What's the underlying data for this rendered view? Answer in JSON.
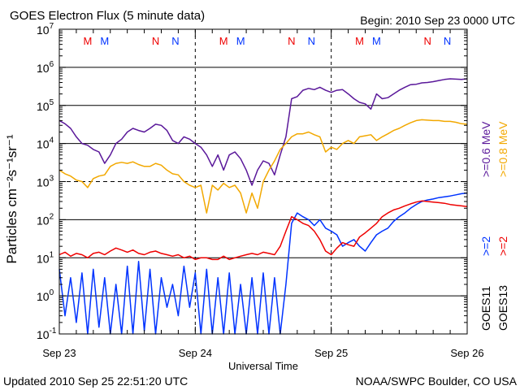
{
  "header": {
    "title": "GOES Electron Flux (5 minute data)",
    "begin": "Begin: 2010 Sep 23 0000 UTC"
  },
  "footer": {
    "updated": "Updated 2010 Sep 25 22:51:20 UTC",
    "credit": "NOAA/SWPC Boulder, CO USA"
  },
  "colors": {
    "goes11_low": "#5a189a",
    "goes13_low": "#f2a800",
    "goes11_high": "#0033ff",
    "goes13_high": "#ee0000",
    "marker_m": "#ee0000",
    "marker_n_blue": "#0033ff"
  },
  "chart_data": {
    "type": "line",
    "title": "GOES Electron Flux (5 minute data)",
    "xlabel": "Universal Time",
    "ylabel": "Particles cm⁻²s⁻¹sr⁻¹",
    "yscale": "log",
    "xlim": [
      0,
      72
    ],
    "ylim": [
      0.1,
      10000000
    ],
    "x_unit": "hours since 2010 Sep 23 0000 UTC",
    "x_ticks": [
      {
        "x": 0,
        "label": "Sep 23"
      },
      {
        "x": 24,
        "label": "Sep 24"
      },
      {
        "x": 48,
        "label": "Sep 25"
      },
      {
        "x": 72,
        "label": "Sep 26"
      }
    ],
    "y_ticks": [
      {
        "exp": "-1"
      },
      {
        "exp": "0"
      },
      {
        "exp": "1"
      },
      {
        "exp": "2"
      },
      {
        "exp": "3"
      },
      {
        "exp": "4"
      },
      {
        "exp": "5"
      },
      {
        "exp": "6"
      },
      {
        "exp": "7"
      }
    ],
    "alert_threshold": 1000,
    "markers": [
      {
        "x": 5,
        "label": "M",
        "color": "#ee0000"
      },
      {
        "x": 8,
        "label": "M",
        "color": "#0033ff"
      },
      {
        "x": 17,
        "label": "N",
        "color": "#ee0000"
      },
      {
        "x": 20.5,
        "label": "N",
        "color": "#0033ff"
      },
      {
        "x": 29,
        "label": "M",
        "color": "#ee0000"
      },
      {
        "x": 32,
        "label": "M",
        "color": "#0033ff"
      },
      {
        "x": 41,
        "label": "N",
        "color": "#ee0000"
      },
      {
        "x": 44.5,
        "label": "N",
        "color": "#0033ff"
      },
      {
        "x": 53,
        "label": "M",
        "color": "#ee0000"
      },
      {
        "x": 56,
        "label": "M",
        "color": "#0033ff"
      },
      {
        "x": 65,
        "label": "N",
        "color": "#ee0000"
      },
      {
        "x": 68.5,
        "label": "N",
        "color": "#0033ff"
      }
    ],
    "legend": {
      "low": [
        {
          "text": ">=0.6 MeV",
          "color": "#5a189a"
        },
        {
          "text": ">=0.8 MeV",
          "color": "#f2a800"
        }
      ],
      "high": [
        {
          "text": ">=2",
          "color": "#0033ff"
        },
        {
          "text": ">=2",
          "color": "#ee0000"
        }
      ],
      "satellites": [
        "GOES11",
        "GOES13"
      ]
    },
    "series": [
      {
        "name": "GOES11 >=0.6 MeV",
        "color": "#5a189a",
        "x": [
          0,
          1,
          2,
          3,
          4,
          5,
          6,
          7,
          8,
          9,
          10,
          11,
          12,
          13,
          14,
          15,
          16,
          17,
          18,
          19,
          20,
          21,
          22,
          23,
          24,
          25,
          26,
          27,
          28,
          29,
          30,
          31,
          32,
          33,
          34,
          35,
          36,
          37,
          38,
          39,
          40,
          41,
          42,
          43,
          44,
          45,
          46,
          47,
          48,
          49,
          50,
          51,
          52,
          53,
          54,
          55,
          56,
          57,
          58,
          59,
          60,
          61,
          62,
          63,
          64,
          65,
          66,
          67,
          68,
          69,
          70,
          71,
          72
        ],
        "y": [
          40000,
          33000,
          25000,
          15000,
          10000,
          9000,
          7000,
          6000,
          3000,
          5000,
          10000,
          13000,
          20000,
          25000,
          22000,
          20000,
          25000,
          32000,
          30000,
          22000,
          12000,
          10000,
          15000,
          13000,
          10000,
          8000,
          5000,
          2500,
          5000,
          2000,
          5000,
          6000,
          4000,
          2000,
          800,
          2000,
          3500,
          3000,
          1500,
          5000,
          15000,
          150000,
          170000,
          250000,
          280000,
          260000,
          300000,
          250000,
          220000,
          250000,
          260000,
          200000,
          150000,
          120000,
          110000,
          80000,
          200000,
          150000,
          160000,
          200000,
          250000,
          300000,
          350000,
          360000,
          390000,
          400000,
          420000,
          450000,
          480000,
          500000,
          490000,
          480000,
          500000
        ]
      },
      {
        "name": "GOES13 >=0.8 MeV",
        "color": "#f2a800",
        "x": [
          0,
          1,
          2,
          3,
          4,
          5,
          6,
          7,
          8,
          9,
          10,
          11,
          12,
          13,
          14,
          15,
          16,
          17,
          18,
          19,
          20,
          21,
          22,
          23,
          24,
          25,
          26,
          27,
          28,
          29,
          30,
          31,
          32,
          33,
          34,
          35,
          36,
          37,
          38,
          39,
          40,
          41,
          42,
          43,
          44,
          45,
          46,
          47,
          48,
          49,
          50,
          51,
          52,
          53,
          54,
          55,
          56,
          57,
          58,
          59,
          60,
          61,
          62,
          63,
          64,
          65,
          66,
          67,
          68,
          69,
          70,
          71,
          72
        ],
        "y": [
          2000,
          1600,
          1400,
          1100,
          1000,
          700,
          1200,
          1400,
          1500,
          2500,
          3000,
          3200,
          3000,
          3300,
          2800,
          2500,
          2500,
          3000,
          2700,
          2000,
          1600,
          1500,
          1000,
          800,
          700,
          800,
          150,
          800,
          600,
          900,
          700,
          800,
          500,
          150,
          500,
          200,
          1000,
          2000,
          3500,
          7000,
          10000,
          15000,
          18000,
          18000,
          20000,
          17000,
          15000,
          6000,
          8000,
          7000,
          10000,
          12000,
          10000,
          15000,
          16000,
          17000,
          12000,
          15000,
          18000,
          22000,
          25000,
          30000,
          35000,
          40000,
          42000,
          41000,
          40000,
          40000,
          38000,
          38000,
          36000,
          33000,
          32000
        ]
      },
      {
        "name": "GOES11 >=2 MeV",
        "color": "#0033ff",
        "x": [
          0,
          1,
          2,
          3,
          4,
          5,
          6,
          7,
          8,
          9,
          10,
          11,
          12,
          13,
          14,
          15,
          16,
          17,
          18,
          19,
          20,
          21,
          22,
          23,
          24,
          25,
          26,
          27,
          28,
          29,
          30,
          31,
          32,
          33,
          34,
          35,
          36,
          37,
          38,
          39,
          40,
          41,
          42,
          43,
          44,
          45,
          46,
          47,
          48,
          49,
          50,
          51,
          52,
          53,
          54,
          55,
          56,
          57,
          58,
          59,
          60,
          61,
          62,
          63,
          64,
          65,
          66,
          67,
          68,
          69,
          70,
          71,
          72
        ],
        "y": [
          5,
          0.3,
          3,
          0.2,
          4,
          0.1,
          5,
          0.15,
          3,
          0.1,
          2,
          0.1,
          6,
          0.1,
          8,
          0.12,
          5,
          0.1,
          3,
          0.5,
          2,
          0.3,
          6,
          0.5,
          4,
          0.1,
          5,
          0.1,
          3,
          0.1,
          4,
          0.1,
          2,
          0.1,
          3,
          0.1,
          4,
          0.1,
          3,
          0.1,
          2,
          80,
          150,
          120,
          100,
          70,
          100,
          60,
          50,
          40,
          20,
          25,
          30,
          20,
          15,
          25,
          40,
          50,
          60,
          90,
          120,
          150,
          200,
          250,
          300,
          330,
          350,
          380,
          400,
          420,
          450,
          480,
          500
        ]
      },
      {
        "name": "GOES13 >=2 MeV",
        "color": "#ee0000",
        "x": [
          0,
          1,
          2,
          3,
          4,
          5,
          6,
          7,
          8,
          9,
          10,
          11,
          12,
          13,
          14,
          15,
          16,
          17,
          18,
          19,
          20,
          21,
          22,
          23,
          24,
          25,
          26,
          27,
          28,
          29,
          30,
          31,
          32,
          33,
          34,
          35,
          36,
          37,
          38,
          39,
          40,
          41,
          42,
          43,
          44,
          45,
          46,
          47,
          48,
          49,
          50,
          51,
          52,
          53,
          54,
          55,
          56,
          57,
          58,
          59,
          60,
          61,
          62,
          63,
          64,
          65,
          66,
          67,
          68,
          69,
          70,
          71,
          72
        ],
        "y": [
          12,
          14,
          11,
          13,
          12,
          10,
          13,
          14,
          12,
          15,
          18,
          16,
          14,
          16,
          13,
          12,
          14,
          15,
          13,
          12,
          11,
          12,
          10,
          11,
          9,
          10,
          10,
          9,
          9,
          11,
          9,
          10,
          11,
          12,
          13,
          12,
          14,
          13,
          12,
          20,
          50,
          120,
          100,
          80,
          70,
          50,
          30,
          15,
          12,
          18,
          25,
          22,
          20,
          35,
          45,
          60,
          80,
          120,
          150,
          180,
          200,
          230,
          260,
          290,
          310,
          300,
          290,
          280,
          270,
          250,
          240,
          230,
          220
        ]
      }
    ]
  }
}
